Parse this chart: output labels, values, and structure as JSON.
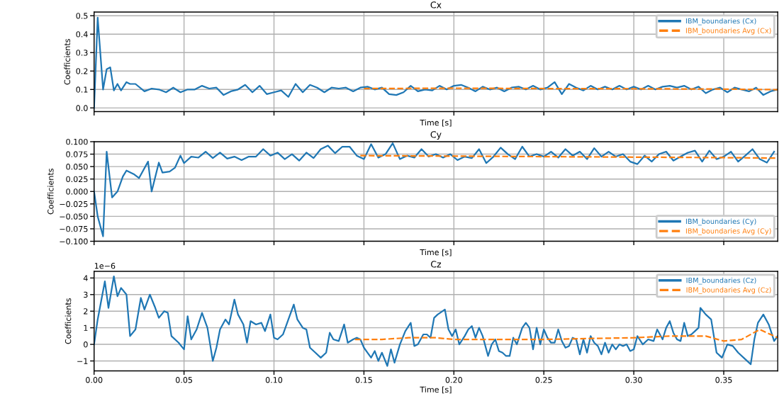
{
  "chart_data": [
    {
      "type": "line",
      "title": "Cx",
      "xlabel": "Time [s]",
      "ylabel": "Coefficients",
      "xlim": [
        0,
        0.38
      ],
      "xticks": [
        0,
        0.05,
        0.1,
        0.15,
        0.2,
        0.25,
        0.3,
        0.35
      ],
      "ylim": [
        -0.02,
        0.52
      ],
      "yticks": [
        {
          "value": 0,
          "label": "0.0"
        },
        0.1,
        0.2,
        0.3,
        0.4,
        0.5
      ],
      "tick_labels": "y",
      "grid": true,
      "legend": "top right",
      "line_style": "solid",
      "series": [
        {
          "name": "IBM_boundaries (Cx)",
          "color": "#1f77b4",
          "x": [
            0,
            0.002,
            0.005,
            0.007,
            0.009,
            0.011,
            0.013,
            0.015,
            0.018,
            0.02,
            0.023,
            0.028,
            0.032,
            0.036,
            0.04,
            0.044,
            0.048,
            0.052,
            0.056,
            0.06,
            0.064,
            0.068,
            0.072,
            0.076,
            0.08,
            0.084,
            0.088,
            0.092,
            0.096,
            0.1,
            0.104,
            0.108,
            0.112,
            0.116,
            0.12,
            0.124,
            0.128,
            0.132,
            0.136,
            0.14,
            0.144,
            0.148,
            0.152,
            0.156,
            0.16,
            0.164,
            0.168,
            0.172,
            0.176,
            0.18,
            0.184,
            0.188,
            0.192,
            0.196,
            0.2,
            0.204,
            0.208,
            0.212,
            0.216,
            0.22,
            0.224,
            0.228,
            0.232,
            0.236,
            0.24,
            0.244,
            0.248,
            0.252,
            0.256,
            0.26,
            0.264,
            0.268,
            0.272,
            0.276,
            0.28,
            0.284,
            0.288,
            0.292,
            0.296,
            0.3,
            0.304,
            0.308,
            0.312,
            0.316,
            0.32,
            0.324,
            0.328,
            0.332,
            0.336,
            0.34,
            0.344,
            0.348,
            0.352,
            0.356,
            0.36,
            0.364,
            0.368,
            0.372,
            0.376,
            0.38
          ],
          "values": [
            0.0,
            0.49,
            0.1,
            0.21,
            0.22,
            0.095,
            0.13,
            0.095,
            0.14,
            0.13,
            0.13,
            0.09,
            0.105,
            0.1,
            0.085,
            0.11,
            0.085,
            0.1,
            0.1,
            0.12,
            0.105,
            0.11,
            0.07,
            0.09,
            0.1,
            0.125,
            0.085,
            0.12,
            0.075,
            0.085,
            0.095,
            0.06,
            0.13,
            0.085,
            0.125,
            0.11,
            0.085,
            0.11,
            0.105,
            0.11,
            0.09,
            0.11,
            0.115,
            0.1,
            0.11,
            0.075,
            0.07,
            0.085,
            0.12,
            0.09,
            0.1,
            0.095,
            0.12,
            0.1,
            0.12,
            0.125,
            0.11,
            0.09,
            0.115,
            0.1,
            0.11,
            0.09,
            0.11,
            0.115,
            0.1,
            0.12,
            0.1,
            0.11,
            0.14,
            0.075,
            0.13,
            0.11,
            0.095,
            0.12,
            0.1,
            0.115,
            0.1,
            0.12,
            0.1,
            0.115,
            0.1,
            0.12,
            0.1,
            0.115,
            0.12,
            0.11,
            0.12,
            0.1,
            0.115,
            0.08,
            0.1,
            0.11,
            0.085,
            0.11,
            0.1,
            0.09,
            0.11,
            0.07,
            0.09,
            0.1
          ]
        },
        {
          "name": "IBM_boundaries Avg (Cx)",
          "color": "#ff7f0e",
          "line_style": "dashed",
          "x": [
            0.15,
            0.2,
            0.25,
            0.3,
            0.35,
            0.38
          ],
          "values": [
            0.105,
            0.107,
            0.105,
            0.104,
            0.102,
            0.099
          ]
        }
      ]
    },
    {
      "type": "line",
      "title": "Cy",
      "xlabel": "Time [s]",
      "ylabel": "Coefficients",
      "xlim": [
        0,
        0.38
      ],
      "xticks": [
        0,
        0.05,
        0.1,
        0.15,
        0.2,
        0.25,
        0.3,
        0.35
      ],
      "ylim": [
        -0.1,
        0.1
      ],
      "yticks": [
        {
          "value": -0.1,
          "label": "−0.100"
        },
        {
          "value": -0.075,
          "label": "−0.075"
        },
        {
          "value": -0.05,
          "label": "−0.050"
        },
        {
          "value": -0.025,
          "label": "−0.025"
        },
        {
          "value": 0,
          "label": "0.000"
        },
        {
          "value": 0.025,
          "label": "0.025"
        },
        {
          "value": 0.05,
          "label": "0.050"
        },
        {
          "value": 0.075,
          "label": "0.075"
        },
        {
          "value": 0.1,
          "label": "0.100"
        }
      ],
      "tick_labels": "y",
      "grid": true,
      "legend": "bottom right",
      "line_style": "solid",
      "series": [
        {
          "name": "IBM_boundaries (Cy)",
          "color": "#1f77b4",
          "x": [
            0,
            0.002,
            0.005,
            0.007,
            0.01,
            0.013,
            0.016,
            0.018,
            0.022,
            0.025,
            0.03,
            0.032,
            0.036,
            0.038,
            0.042,
            0.045,
            0.048,
            0.05,
            0.054,
            0.058,
            0.062,
            0.066,
            0.07,
            0.074,
            0.078,
            0.082,
            0.086,
            0.09,
            0.094,
            0.098,
            0.102,
            0.106,
            0.11,
            0.114,
            0.118,
            0.122,
            0.126,
            0.13,
            0.134,
            0.138,
            0.142,
            0.146,
            0.15,
            0.154,
            0.158,
            0.162,
            0.166,
            0.17,
            0.174,
            0.178,
            0.182,
            0.186,
            0.19,
            0.194,
            0.198,
            0.202,
            0.206,
            0.21,
            0.214,
            0.218,
            0.222,
            0.226,
            0.23,
            0.234,
            0.238,
            0.242,
            0.246,
            0.25,
            0.254,
            0.258,
            0.262,
            0.266,
            0.27,
            0.274,
            0.278,
            0.282,
            0.286,
            0.29,
            0.294,
            0.298,
            0.302,
            0.306,
            0.31,
            0.314,
            0.318,
            0.322,
            0.326,
            0.33,
            0.334,
            0.338,
            0.342,
            0.346,
            0.35,
            0.354,
            0.358,
            0.362,
            0.366,
            0.37,
            0.374,
            0.378
          ],
          "values": [
            0.0,
            -0.05,
            -0.09,
            0.08,
            -0.012,
            0.0,
            0.03,
            0.042,
            0.035,
            0.027,
            0.06,
            0.0,
            0.058,
            0.038,
            0.04,
            0.048,
            0.072,
            0.057,
            0.07,
            0.068,
            0.08,
            0.067,
            0.078,
            0.066,
            0.07,
            0.063,
            0.07,
            0.07,
            0.085,
            0.072,
            0.078,
            0.065,
            0.075,
            0.062,
            0.078,
            0.067,
            0.085,
            0.092,
            0.077,
            0.09,
            0.09,
            0.072,
            0.065,
            0.095,
            0.068,
            0.075,
            0.097,
            0.065,
            0.072,
            0.068,
            0.085,
            0.07,
            0.075,
            0.068,
            0.075,
            0.063,
            0.07,
            0.067,
            0.085,
            0.057,
            0.07,
            0.088,
            0.075,
            0.065,
            0.09,
            0.07,
            0.075,
            0.07,
            0.08,
            0.068,
            0.085,
            0.072,
            0.08,
            0.065,
            0.087,
            0.07,
            0.08,
            0.07,
            0.075,
            0.06,
            0.055,
            0.072,
            0.06,
            0.075,
            0.08,
            0.062,
            0.07,
            0.078,
            0.082,
            0.06,
            0.082,
            0.065,
            0.07,
            0.08,
            0.06,
            0.072,
            0.085,
            0.065,
            0.058,
            0.08
          ]
        },
        {
          "name": "IBM_boundaries Avg (Cy)",
          "color": "#ff7f0e",
          "line_style": "dashed",
          "x": [
            0.148,
            0.2,
            0.25,
            0.3,
            0.35,
            0.38
          ],
          "values": [
            0.072,
            0.071,
            0.07,
            0.069,
            0.068,
            0.067
          ]
        }
      ]
    },
    {
      "type": "line",
      "title": "Cz",
      "xlabel": "Time [s]",
      "ylabel": "Coefficients",
      "annotations": [
        "1e−6"
      ],
      "xlim": [
        0,
        0.38
      ],
      "xticks": [
        {
          "value": 0,
          "label": "0.00"
        },
        {
          "value": 0.05,
          "label": "0.05"
        },
        {
          "value": 0.1,
          "label": "0.10"
        },
        {
          "value": 0.15,
          "label": "0.15"
        },
        {
          "value": 0.2,
          "label": "0.20"
        },
        {
          "value": 0.25,
          "label": "0.25"
        },
        {
          "value": 0.3,
          "label": "0.30"
        },
        {
          "value": 0.35,
          "label": "0.35"
        }
      ],
      "ylim": [
        -1.6,
        4.4
      ],
      "yticks": [
        {
          "value": -1,
          "label": "−1"
        },
        0,
        1,
        2,
        3,
        4
      ],
      "grid": true,
      "legend": "top right",
      "line_style": "solid",
      "series": [
        {
          "name": "IBM_boundaries (Cz)",
          "color": "#1f77b4",
          "x": [
            0,
            0.002,
            0.006,
            0.008,
            0.011,
            0.013,
            0.015,
            0.018,
            0.02,
            0.023,
            0.026,
            0.028,
            0.031,
            0.034,
            0.036,
            0.039,
            0.041,
            0.043,
            0.047,
            0.05,
            0.052,
            0.054,
            0.057,
            0.06,
            0.063,
            0.066,
            0.068,
            0.07,
            0.073,
            0.075,
            0.078,
            0.08,
            0.083,
            0.085,
            0.087,
            0.09,
            0.093,
            0.095,
            0.098,
            0.1,
            0.102,
            0.105,
            0.108,
            0.111,
            0.113,
            0.116,
            0.118,
            0.12,
            0.123,
            0.126,
            0.129,
            0.131,
            0.133,
            0.136,
            0.139,
            0.141,
            0.144,
            0.146,
            0.148,
            0.15,
            0.152,
            0.154,
            0.156,
            0.158,
            0.16,
            0.163,
            0.165,
            0.167,
            0.17,
            0.173,
            0.176,
            0.178,
            0.18,
            0.183,
            0.185,
            0.187,
            0.189,
            0.191,
            0.195,
            0.197,
            0.199,
            0.201,
            0.203,
            0.206,
            0.208,
            0.21,
            0.212,
            0.214,
            0.216,
            0.219,
            0.221,
            0.223,
            0.225,
            0.227,
            0.229,
            0.231,
            0.233,
            0.235,
            0.238,
            0.24,
            0.242,
            0.244,
            0.246,
            0.248,
            0.25,
            0.252,
            0.254,
            0.256,
            0.258,
            0.26,
            0.262,
            0.264,
            0.266,
            0.268,
            0.27,
            0.272,
            0.274,
            0.276,
            0.278,
            0.28,
            0.282,
            0.284,
            0.286,
            0.288,
            0.29,
            0.292,
            0.294,
            0.296,
            0.298,
            0.3,
            0.302,
            0.305,
            0.308,
            0.311,
            0.313,
            0.316,
            0.318,
            0.32,
            0.322,
            0.324,
            0.326,
            0.328,
            0.33,
            0.332,
            0.334,
            0.336,
            0.337,
            0.34,
            0.343,
            0.346,
            0.349,
            0.352,
            0.355,
            0.358,
            0.362,
            0.365,
            0.367,
            0.369,
            0.372,
            0.375,
            0.378,
            0.38
          ],
          "values": [
            0.0,
            1.5,
            3.8,
            2.2,
            4.1,
            2.9,
            3.4,
            3.0,
            0.5,
            0.9,
            2.8,
            2.1,
            3.0,
            2.2,
            1.6,
            2.0,
            1.9,
            0.5,
            0.1,
            -0.3,
            1.7,
            0.3,
            0.9,
            1.9,
            1.0,
            -1.0,
            -0.2,
            0.9,
            1.5,
            1.2,
            2.7,
            1.8,
            1.2,
            0.1,
            1.4,
            1.2,
            1.3,
            0.8,
            1.8,
            0.4,
            0.3,
            0.6,
            1.5,
            2.4,
            1.5,
            1.0,
            0.9,
            -0.2,
            -0.5,
            -0.8,
            -0.5,
            0.7,
            0.3,
            0.2,
            1.2,
            0.1,
            0.3,
            0.4,
            0.3,
            -0.2,
            -0.5,
            -0.8,
            -0.4,
            -1.0,
            -0.5,
            -1.3,
            -0.3,
            -1.1,
            0.0,
            0.8,
            1.3,
            -0.1,
            0.0,
            0.6,
            0.6,
            0.4,
            1.6,
            1.8,
            2.1,
            0.9,
            0.5,
            0.9,
            0.0,
            0.5,
            0.9,
            1.1,
            0.4,
            1.0,
            0.5,
            -0.7,
            0.0,
            0.3,
            -0.4,
            -0.5,
            -0.7,
            -0.7,
            0.4,
            0.0,
            1.0,
            1.3,
            1.0,
            -0.3,
            1.0,
            0.0,
            0.9,
            0.4,
            0.1,
            0.1,
            0.9,
            0.2,
            -0.2,
            -0.1,
            0.4,
            0.3,
            -0.6,
            0.3,
            -0.5,
            0.5,
            0.1,
            -0.1,
            -0.6,
            0.1,
            -0.5,
            0.0,
            -0.3,
            0.0,
            -0.1,
            0.0,
            -0.4,
            -0.3,
            0.5,
            0.0,
            0.3,
            0.2,
            0.9,
            0.3,
            1.0,
            1.4,
            0.7,
            0.3,
            0.2,
            1.3,
            0.5,
            0.6,
            0.8,
            1.0,
            2.2,
            1.8,
            1.5,
            -0.5,
            -0.8,
            0.0,
            -0.1,
            -0.5,
            -0.9,
            -1.2,
            0.3,
            1.3,
            1.8,
            1.2,
            0.2,
            0.5
          ]
        },
        {
          "name": "IBM_boundaries Avg (Cz)",
          "color": "#ff7f0e",
          "line_style": "dashed",
          "x": [
            0.145,
            0.16,
            0.175,
            0.19,
            0.2,
            0.25,
            0.3,
            0.32,
            0.34,
            0.35,
            0.36,
            0.37,
            0.38
          ],
          "values": [
            0.3,
            0.3,
            0.4,
            0.4,
            0.3,
            0.3,
            0.4,
            0.5,
            0.5,
            0.2,
            0.3,
            0.9,
            0.4
          ]
        }
      ]
    }
  ]
}
